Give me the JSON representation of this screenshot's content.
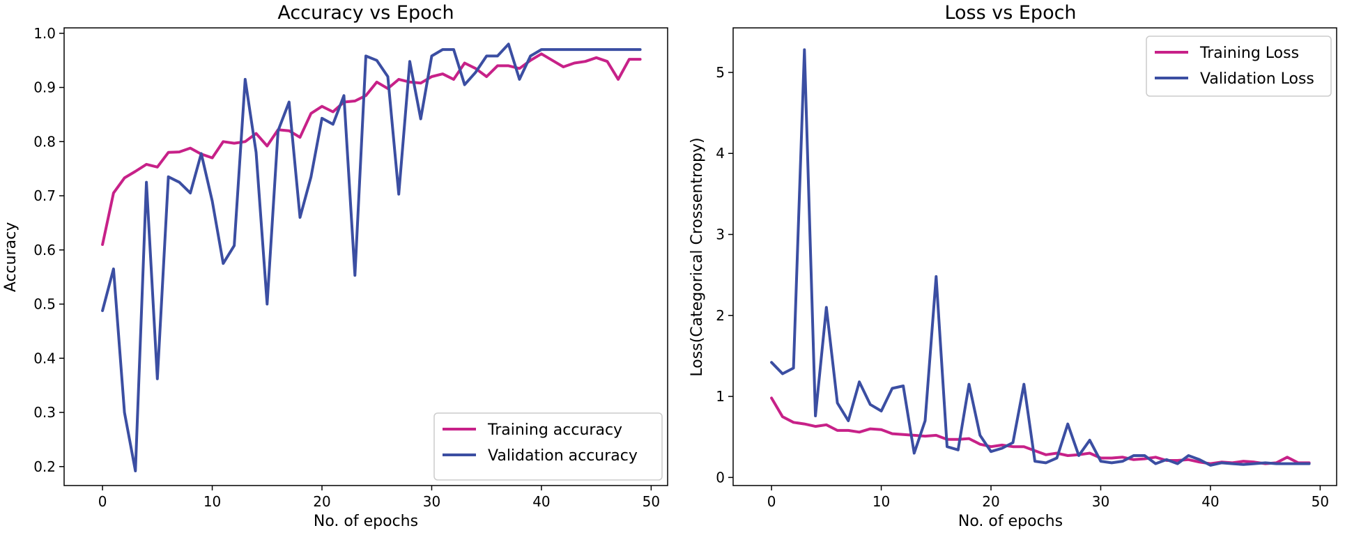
{
  "colors": {
    "training": "#c72188",
    "validation": "#3b4ea2",
    "axis": "#000000",
    "legend_border": "#cccccc",
    "background": "#ffffff"
  },
  "chart_data": [
    {
      "type": "line",
      "title": "Accuracy vs Epoch",
      "xlabel": "No. of epochs",
      "ylabel": "Accuracy",
      "xlim": [
        -3.5,
        51.5
      ],
      "ylim": [
        0.165,
        1.01
      ],
      "xticks": [
        0,
        10,
        20,
        30,
        40,
        50
      ],
      "xtick_labels": [
        "0",
        "10",
        "20",
        "30",
        "40",
        "50"
      ],
      "yticks": [
        0.2,
        0.3,
        0.4,
        0.5,
        0.6,
        0.7,
        0.8,
        0.9,
        1.0
      ],
      "ytick_labels": [
        "0.2",
        "0.3",
        "0.4",
        "0.5",
        "0.6",
        "0.7",
        "0.8",
        "0.9",
        "1.0"
      ],
      "legend_position": "lower-right",
      "x": [
        0,
        1,
        2,
        3,
        4,
        5,
        6,
        7,
        8,
        9,
        10,
        11,
        12,
        13,
        14,
        15,
        16,
        17,
        18,
        19,
        20,
        21,
        22,
        23,
        24,
        25,
        26,
        27,
        28,
        29,
        30,
        31,
        32,
        33,
        34,
        35,
        36,
        37,
        38,
        39,
        40,
        41,
        42,
        43,
        44,
        45,
        46,
        47,
        48,
        49
      ],
      "series": [
        {
          "name": "Training accuracy",
          "color_key": "training",
          "values": [
            0.61,
            0.705,
            0.733,
            0.745,
            0.758,
            0.753,
            0.78,
            0.781,
            0.788,
            0.777,
            0.77,
            0.8,
            0.797,
            0.8,
            0.815,
            0.792,
            0.822,
            0.82,
            0.808,
            0.852,
            0.865,
            0.855,
            0.873,
            0.875,
            0.885,
            0.91,
            0.898,
            0.915,
            0.91,
            0.908,
            0.92,
            0.925,
            0.915,
            0.945,
            0.935,
            0.92,
            0.94,
            0.94,
            0.935,
            0.95,
            0.962,
            0.95,
            0.938,
            0.945,
            0.948,
            0.955,
            0.948,
            0.915,
            0.952,
            0.952
          ]
        },
        {
          "name": "Validation accuracy",
          "color_key": "validation",
          "values": [
            0.488,
            0.565,
            0.3,
            0.192,
            0.725,
            0.362,
            0.735,
            0.725,
            0.705,
            0.778,
            0.69,
            0.575,
            0.608,
            0.915,
            0.78,
            0.5,
            0.82,
            0.873,
            0.66,
            0.735,
            0.843,
            0.832,
            0.885,
            0.553,
            0.958,
            0.95,
            0.92,
            0.703,
            0.948,
            0.842,
            0.958,
            0.97,
            0.97,
            0.905,
            0.928,
            0.958,
            0.958,
            0.98,
            0.915,
            0.958,
            0.97,
            0.97,
            0.97,
            0.97,
            0.97,
            0.97,
            0.97,
            0.97,
            0.97,
            0.97
          ]
        }
      ]
    },
    {
      "type": "line",
      "title": "Loss vs Epoch",
      "xlabel": "No. of epochs",
      "ylabel": "Loss(Categorical Crossentropy)",
      "xlim": [
        -3.5,
        51.5
      ],
      "ylim": [
        -0.1,
        5.55
      ],
      "xticks": [
        0,
        10,
        20,
        30,
        40,
        50
      ],
      "xtick_labels": [
        "0",
        "10",
        "20",
        "30",
        "40",
        "50"
      ],
      "yticks": [
        0,
        1,
        2,
        3,
        4,
        5
      ],
      "ytick_labels": [
        "0",
        "1",
        "2",
        "3",
        "4",
        "5"
      ],
      "legend_position": "upper-right",
      "x": [
        0,
        1,
        2,
        3,
        4,
        5,
        6,
        7,
        8,
        9,
        10,
        11,
        12,
        13,
        14,
        15,
        16,
        17,
        18,
        19,
        20,
        21,
        22,
        23,
        24,
        25,
        26,
        27,
        28,
        29,
        30,
        31,
        32,
        33,
        34,
        35,
        36,
        37,
        38,
        39,
        40,
        41,
        42,
        43,
        44,
        45,
        46,
        47,
        48,
        49
      ],
      "series": [
        {
          "name": "Training Loss",
          "color_key": "training",
          "values": [
            0.98,
            0.75,
            0.68,
            0.66,
            0.63,
            0.65,
            0.58,
            0.58,
            0.56,
            0.6,
            0.59,
            0.54,
            0.53,
            0.52,
            0.51,
            0.52,
            0.47,
            0.47,
            0.48,
            0.41,
            0.38,
            0.4,
            0.38,
            0.38,
            0.33,
            0.28,
            0.3,
            0.27,
            0.28,
            0.3,
            0.24,
            0.24,
            0.25,
            0.22,
            0.23,
            0.25,
            0.21,
            0.21,
            0.22,
            0.19,
            0.17,
            0.19,
            0.18,
            0.2,
            0.19,
            0.17,
            0.18,
            0.25,
            0.18,
            0.18
          ]
        },
        {
          "name": "Validation Loss",
          "color_key": "validation",
          "values": [
            1.42,
            1.28,
            1.35,
            5.28,
            0.76,
            2.1,
            0.92,
            0.7,
            1.18,
            0.9,
            0.82,
            1.1,
            1.13,
            0.3,
            0.7,
            2.48,
            0.38,
            0.34,
            1.15,
            0.52,
            0.32,
            0.36,
            0.43,
            1.15,
            0.2,
            0.18,
            0.24,
            0.66,
            0.27,
            0.46,
            0.2,
            0.18,
            0.2,
            0.27,
            0.27,
            0.17,
            0.22,
            0.17,
            0.27,
            0.22,
            0.15,
            0.18,
            0.17,
            0.16,
            0.17,
            0.18,
            0.17,
            0.17,
            0.17,
            0.17
          ]
        }
      ]
    }
  ]
}
